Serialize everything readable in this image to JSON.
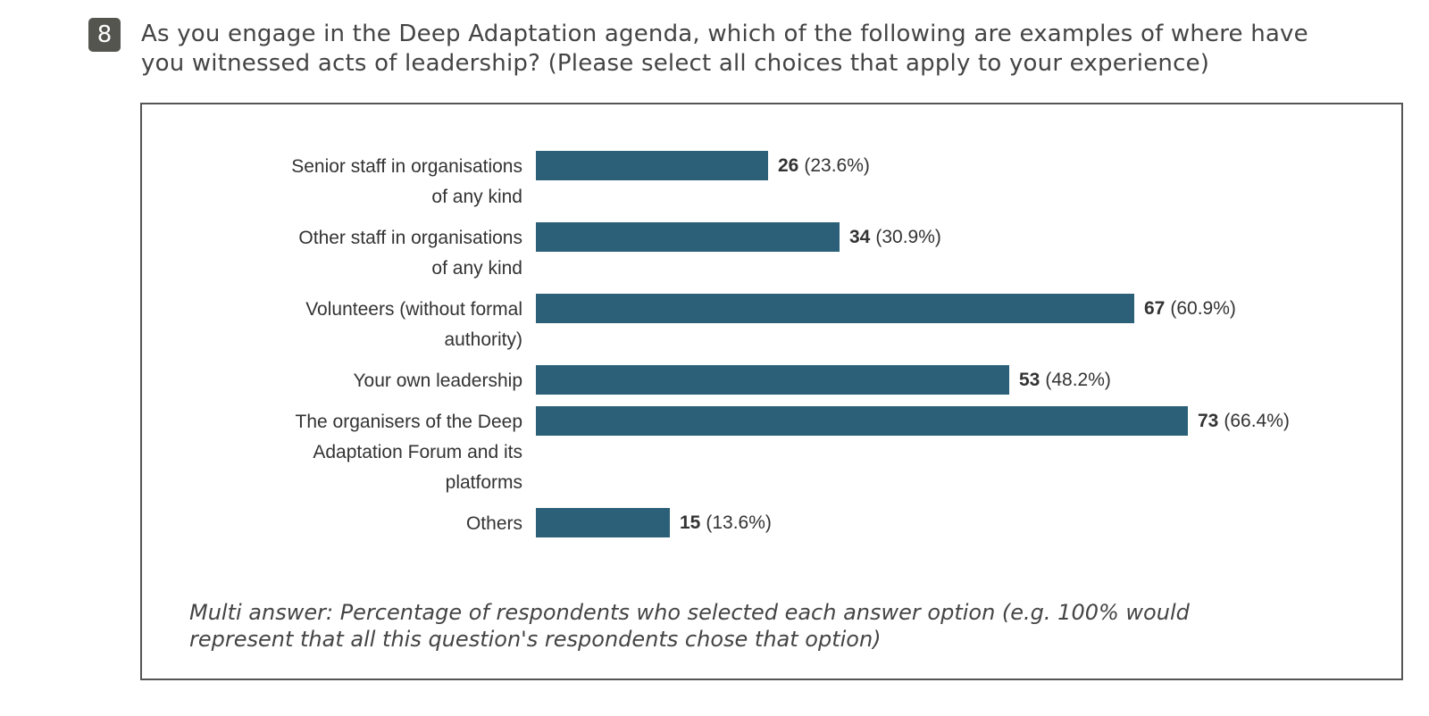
{
  "question": {
    "number": "8",
    "text_line1": "As you engage in the Deep Adaptation agenda, which of the following are examples of where have",
    "text_line2": "you witnessed acts of leadership? (Please select all choices that apply to your experience)"
  },
  "chart_data": {
    "type": "bar",
    "orientation": "horizontal",
    "categories": [
      "Senior staff in organisations of any kind",
      "Other staff in organisations of any kind",
      "Volunteers (without formal authority)",
      "Your own leadership",
      "The organisers of the Deep Adaptation Forum and its platforms",
      "Others"
    ],
    "category_lines": [
      [
        "Senior staff in organisations",
        "of any kind"
      ],
      [
        "Other staff in organisations",
        "of any kind"
      ],
      [
        "Volunteers (without formal",
        "authority)"
      ],
      [
        "Your own leadership"
      ],
      [
        "The organisers of the Deep",
        "Adaptation Forum and its",
        "platforms"
      ],
      [
        "Others"
      ]
    ],
    "values": [
      26,
      34,
      67,
      53,
      73,
      15
    ],
    "percent_labels": [
      "(23.6%)",
      "(30.9%)",
      "(60.9%)",
      "(48.2%)",
      "(66.4%)",
      "(13.6%)"
    ],
    "grid": false,
    "bar_color": "#2b6078"
  },
  "footnote": {
    "line1": "Multi answer: Percentage of respondents who selected each answer option (e.g. 100% would",
    "line2": "represent that all this question's respondents chose that option)"
  }
}
